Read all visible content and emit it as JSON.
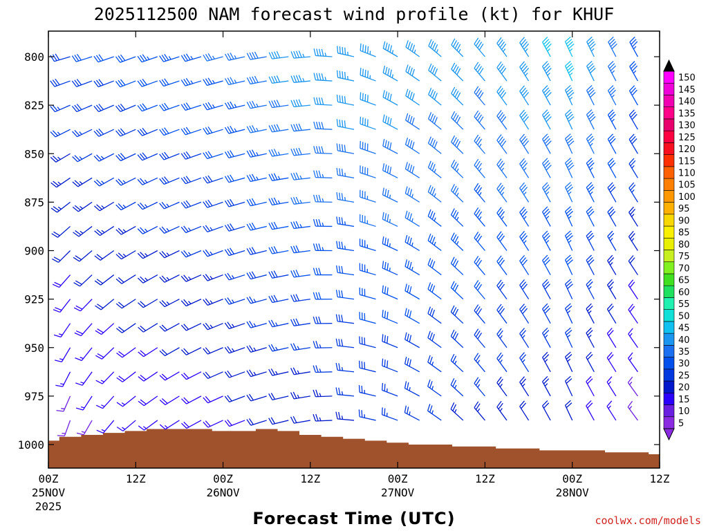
{
  "chart_data": {
    "type": "wind-barb-profile",
    "title": "2025112500 NAM forecast wind profile (kt) for KHUF",
    "xlabel": "Forecast Time (UTC)",
    "credit": "coolwx.com/models",
    "x_ticks": [
      {
        "hour": 0,
        "label": "00Z",
        "sub1": "25NOV",
        "sub2": "2025"
      },
      {
        "hour": 12,
        "label": "12Z",
        "sub1": "",
        "sub2": ""
      },
      {
        "hour": 24,
        "label": "00Z",
        "sub1": "26NOV",
        "sub2": ""
      },
      {
        "hour": 36,
        "label": "12Z",
        "sub1": "",
        "sub2": ""
      },
      {
        "hour": 48,
        "label": "00Z",
        "sub1": "27NOV",
        "sub2": ""
      },
      {
        "hour": 60,
        "label": "12Z",
        "sub1": "",
        "sub2": ""
      },
      {
        "hour": 72,
        "label": "00Z",
        "sub1": "28NOV",
        "sub2": ""
      },
      {
        "hour": 84,
        "label": "12Z",
        "sub1": "",
        "sub2": ""
      }
    ],
    "xlim_hours": [
      0,
      84
    ],
    "y_ticks_hpa": [
      800,
      825,
      850,
      875,
      900,
      925,
      950,
      975,
      1000
    ],
    "ylim_hpa": [
      786,
      1012
    ],
    "levels_hpa": [
      800,
      812.5,
      825,
      837.5,
      850,
      862.5,
      875,
      887.5,
      900,
      912.5,
      925,
      937.5,
      950,
      962.5,
      975,
      987.5
    ],
    "forecast_hours": [
      0,
      3,
      6,
      9,
      12,
      15,
      18,
      21,
      24,
      27,
      30,
      33,
      36,
      39,
      42,
      45,
      48,
      51,
      54,
      57,
      60,
      63,
      66,
      69,
      72,
      75,
      78,
      81,
      84
    ],
    "surface_pressure": [
      {
        "hour": 0,
        "hpa": 998
      },
      {
        "hour": 3,
        "hpa": 996
      },
      {
        "hour": 6,
        "hpa": 995
      },
      {
        "hour": 9,
        "hpa": 994
      },
      {
        "hour": 12,
        "hpa": 993
      },
      {
        "hour": 15,
        "hpa": 992
      },
      {
        "hour": 18,
        "hpa": 992
      },
      {
        "hour": 21,
        "hpa": 992
      },
      {
        "hour": 24,
        "hpa": 993
      },
      {
        "hour": 27,
        "hpa": 993
      },
      {
        "hour": 30,
        "hpa": 992
      },
      {
        "hour": 33,
        "hpa": 993
      },
      {
        "hour": 36,
        "hpa": 995
      },
      {
        "hour": 39,
        "hpa": 996
      },
      {
        "hour": 42,
        "hpa": 997
      },
      {
        "hour": 45,
        "hpa": 998
      },
      {
        "hour": 48,
        "hpa": 999
      },
      {
        "hour": 51,
        "hpa": 1000
      },
      {
        "hour": 54,
        "hpa": 1000
      },
      {
        "hour": 57,
        "hpa": 1001
      },
      {
        "hour": 60,
        "hpa": 1001
      },
      {
        "hour": 63,
        "hpa": 1002
      },
      {
        "hour": 66,
        "hpa": 1002
      },
      {
        "hour": 69,
        "hpa": 1003
      },
      {
        "hour": 72,
        "hpa": 1003
      },
      {
        "hour": 75,
        "hpa": 1003
      },
      {
        "hour": 78,
        "hpa": 1004
      },
      {
        "hour": 81,
        "hpa": 1004
      },
      {
        "hour": 84,
        "hpa": 1005
      }
    ],
    "wind_keyframes": [
      {
        "hour": 0,
        "upper": {
          "dir": 255,
          "spd": 28
        },
        "lower": {
          "dir": 190,
          "spd": 12
        }
      },
      {
        "hour": 12,
        "upper": {
          "dir": 250,
          "spd": 32
        },
        "lower": {
          "dir": 230,
          "spd": 16
        }
      },
      {
        "hour": 24,
        "upper": {
          "dir": 255,
          "spd": 35
        },
        "lower": {
          "dir": 245,
          "spd": 18
        }
      },
      {
        "hour": 36,
        "upper": {
          "dir": 265,
          "spd": 44
        },
        "lower": {
          "dir": 260,
          "spd": 22
        }
      },
      {
        "hour": 48,
        "upper": {
          "dir": 300,
          "spd": 44
        },
        "lower": {
          "dir": 290,
          "spd": 26
        }
      },
      {
        "hour": 60,
        "upper": {
          "dir": 320,
          "spd": 42
        },
        "lower": {
          "dir": 320,
          "spd": 24
        }
      },
      {
        "hour": 72,
        "upper": {
          "dir": 335,
          "spd": 47
        },
        "lower": {
          "dir": 335,
          "spd": 20
        }
      },
      {
        "hour": 84,
        "upper": {
          "dir": 330,
          "spd": 30
        },
        "lower": {
          "dir": 320,
          "spd": 10
        }
      }
    ],
    "colorbar": {
      "levels": [
        5,
        10,
        15,
        20,
        25,
        30,
        35,
        40,
        45,
        50,
        55,
        60,
        65,
        70,
        75,
        80,
        85,
        90,
        95,
        100,
        105,
        110,
        115,
        120,
        125,
        130,
        135,
        140,
        145,
        150
      ],
      "colors": [
        "#8a2be2",
        "#6a1fe0",
        "#2a00ff",
        "#0018cc",
        "#0038e0",
        "#0050ee",
        "#1a70f0",
        "#1a95f0",
        "#10c0f0",
        "#10e0d8",
        "#20f0b0",
        "#20e060",
        "#40e020",
        "#80f020",
        "#c8f020",
        "#e8f000",
        "#f8f000",
        "#f8d800",
        "#ffb000",
        "#ff9800",
        "#ff8000",
        "#ff6000",
        "#ff3000",
        "#f81020",
        "#ff0040",
        "#e8006c",
        "#ff0088",
        "#f000b0",
        "#f000d8",
        "#ff00ff"
      ]
    },
    "colors": {
      "ground": "#a0522d",
      "frame": "#000000"
    }
  }
}
